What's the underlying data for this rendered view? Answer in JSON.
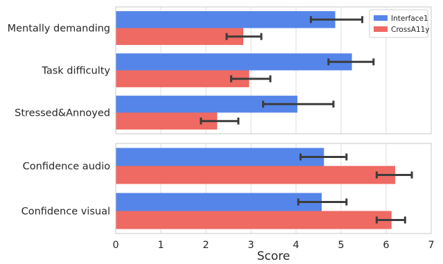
{
  "chart_data": {
    "type": "bar",
    "orientation": "horizontal",
    "xlabel": "Score",
    "ylabel": "",
    "xlim": [
      0,
      7
    ],
    "xticks": [
      "0",
      "1",
      "2",
      "3",
      "4",
      "5",
      "6",
      "7"
    ],
    "grid": true,
    "legend": {
      "position": "top-right",
      "entries": [
        "Interface1",
        "CrossA11y"
      ]
    },
    "colors": {
      "Interface1": "#5585e8",
      "CrossA11y": "#ee6a62"
    },
    "panels": [
      {
        "categories": [
          "Mentally demanding",
          "Task difficulty",
          "Stressed&Annoyed"
        ],
        "series": [
          {
            "name": "Interface1",
            "values": [
              4.87,
              5.24,
              4.03
            ],
            "err_low": [
              4.33,
              4.72,
              3.27
            ],
            "err_high": [
              5.47,
              5.72,
              4.83
            ]
          },
          {
            "name": "CrossA11y",
            "values": [
              2.83,
              2.96,
              2.25
            ],
            "err_low": [
              2.46,
              2.56,
              1.89
            ],
            "err_high": [
              3.23,
              3.43,
              2.72
            ]
          }
        ]
      },
      {
        "categories": [
          "Confidence audio",
          "Confidence visual"
        ],
        "series": [
          {
            "name": "Interface1",
            "values": [
              4.62,
              4.57
            ],
            "err_low": [
              4.1,
              4.05
            ],
            "err_high": [
              5.12,
              5.12
            ]
          },
          {
            "name": "CrossA11y",
            "values": [
              6.2,
              6.12
            ],
            "err_low": [
              5.79,
              5.79
            ],
            "err_high": [
              6.57,
              6.42
            ]
          }
        ]
      }
    ]
  }
}
